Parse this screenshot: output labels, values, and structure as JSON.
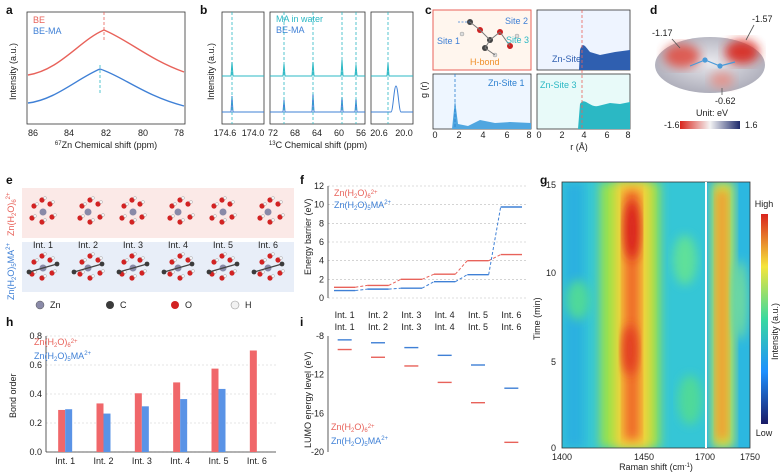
{
  "panel_labels": [
    "a",
    "b",
    "c",
    "d",
    "e",
    "f",
    "g",
    "h",
    "i"
  ],
  "colors": {
    "red": "#e8625a",
    "blue": "#3f80d6",
    "teal": "#2bb8c4",
    "navy": "#2f5fb0"
  },
  "a": {
    "legend": [
      "BE",
      "BE-MA"
    ],
    "ylabel": "Intensity (a.u.)",
    "xlabel": "67Zn Chemical shift (ppm)",
    "xlabel_sup": "67",
    "xlabel_rest": "Zn Chemical shift (ppm)",
    "xticks": [
      "86",
      "84",
      "82",
      "80",
      "78"
    ]
  },
  "b": {
    "legend": [
      "MA in water",
      "BE-MA"
    ],
    "ylabel": "Intensity (a.u.)",
    "xlabel_sup": "13",
    "xlabel_rest": "C Chemical shift (ppm)",
    "xticks1": [
      "174.6",
      "174.0"
    ],
    "xticks2": [
      "72",
      "68",
      "64",
      "60",
      "56"
    ],
    "xticks3": [
      "20.6",
      "20.0"
    ]
  },
  "c": {
    "site_labels": [
      "Site 1",
      "Site 2",
      "Site 3",
      "H-bond"
    ],
    "panels": [
      "Zn-Site 1",
      "Zn-Site 2",
      "Zn-Site 3"
    ],
    "ylabel": "g (r)",
    "xlabel": "r (Å)",
    "xticks": [
      "0",
      "2",
      "4",
      "6",
      "8"
    ]
  },
  "d": {
    "values": [
      "-1.17",
      "-1.57",
      "-0.62"
    ],
    "scale": [
      "-1.6",
      "1.6"
    ],
    "unit": "Unit: eV"
  },
  "e": {
    "row1": "Zn(H2O)6 2+",
    "row2": "Zn(H2O)5MA 2+",
    "ints": [
      "Int. 1",
      "Int. 2",
      "Int. 3",
      "Int. 4",
      "Int. 5",
      "Int. 6"
    ],
    "legend": [
      "Zn",
      "C",
      "O",
      "H"
    ]
  },
  "g": {
    "ylabel": "Time (min)",
    "xlabel_main": "Raman shift (cm",
    "xlabel_sup": "-1",
    "xlabel_end": ")",
    "xticks": [
      "1400",
      "1450",
      "1700",
      "1750"
    ],
    "yticks": [
      "0",
      "5",
      "10",
      "15"
    ],
    "cb_label": "Intensity (a.u.)",
    "cb_high": "High",
    "cb_low": "Low"
  },
  "chart_data": [
    {
      "panel": "f",
      "type": "line",
      "ylabel": "Energy barrier (eV)",
      "categories": [
        "Int. 1",
        "Int. 2",
        "Int. 3",
        "Int. 4",
        "Int. 5",
        "Int. 6"
      ],
      "ylim": [
        0,
        12
      ],
      "yticks": [
        "0",
        "2",
        "4",
        "6",
        "8",
        "10",
        "12"
      ],
      "series": [
        {
          "name": "Zn(H2O)6 2+",
          "base": "Zn(H",
          "s1": "2",
          "mid": "O)",
          "s2": "6",
          "sup": "2+",
          "color": "#e8625a",
          "values": [
            1.15,
            1.35,
            2.0,
            2.55,
            4.0,
            4.65
          ]
        },
        {
          "name": "Zn(H2O)5MA 2+",
          "base": "Zn(H",
          "s1": "2",
          "mid": "O)",
          "s2": "5",
          "mid2": "MA",
          "sup": "2+",
          "color": "#3f80d6",
          "values": [
            0.8,
            0.95,
            1.05,
            1.75,
            2.5,
            9.75
          ]
        }
      ]
    },
    {
      "panel": "h",
      "type": "bar",
      "ylabel": "Bond order",
      "categories": [
        "Int. 1",
        "Int. 2",
        "Int. 3",
        "Int. 4",
        "Int. 5",
        "Int. 6"
      ],
      "ylim": [
        0,
        0.8
      ],
      "yticks": [
        "0.0",
        "0.2",
        "0.4",
        "0.6",
        "0.8"
      ],
      "series": [
        {
          "name": "Zn(H2O)6 2+",
          "color": "#f0676a",
          "values": [
            0.29,
            0.335,
            0.405,
            0.48,
            0.575,
            0.7
          ]
        },
        {
          "name": "Zn(H2O)5MA 2+",
          "color": "#5a93e6",
          "values": [
            0.295,
            0.265,
            0.315,
            0.365,
            0.435,
            null
          ]
        }
      ]
    },
    {
      "panel": "i",
      "type": "scatter",
      "ylabel": "LUMO energy level (eV)",
      "categories": [
        "Int. 1",
        "Int. 2",
        "Int. 3",
        "Int. 4",
        "Int. 5",
        "Int. 6"
      ],
      "ylim": [
        -20,
        -8
      ],
      "yticks": [
        "-8",
        "-12",
        "-16",
        "-20"
      ],
      "series": [
        {
          "name": "Zn(H2O)6 2+",
          "color": "#e8625a",
          "values": [
            -9.4,
            -10.2,
            -11.1,
            -12.8,
            -14.9,
            -19.0
          ]
        },
        {
          "name": "Zn(H2O)5MA 2+",
          "color": "#3f80d6",
          "values": [
            -8.4,
            -8.7,
            -9.2,
            -10.0,
            -11.0,
            -13.4
          ]
        }
      ]
    },
    {
      "panel": "g",
      "type": "heatmap",
      "xlabel": "Raman shift (cm-1)",
      "ylabel": "Time (min)",
      "xranges": [
        [
          1400,
          1475
        ],
        [
          1680,
          1750
        ]
      ],
      "ylim": [
        0,
        15
      ]
    }
  ]
}
